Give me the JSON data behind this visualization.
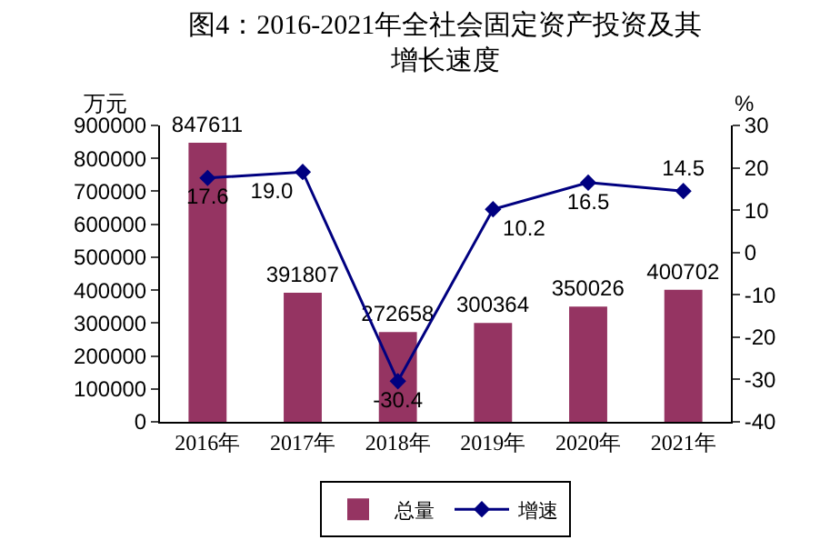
{
  "chart_data": {
    "type": "bar",
    "title": "图4：2016-2021年全社会固定资产投资及其增长速度",
    "ylabel": "万元",
    "y2label": "%",
    "categories": [
      "2016年",
      "2017年",
      "2018年",
      "2019年",
      "2020年",
      "2021年"
    ],
    "series": [
      {
        "name": "总量",
        "color": "#953462",
        "values": [
          847611,
          391807,
          272658,
          300364,
          350026,
          400702
        ]
      },
      {
        "name": "增速",
        "type": "line",
        "axis": "y2",
        "color": "#000080",
        "marker": "diamond",
        "values": [
          17.6,
          19.0,
          -30.4,
          10.2,
          16.5,
          14.5
        ],
        "value_labels": [
          "17.6",
          "19.0",
          "-30.4",
          "10.2",
          "16.5",
          "14.5"
        ]
      }
    ],
    "data_labels": true,
    "ylim": [
      0,
      900000
    ],
    "yticks": [
      0,
      100000,
      200000,
      300000,
      400000,
      500000,
      600000,
      700000,
      800000,
      900000
    ],
    "y2lim": [
      -40,
      30
    ],
    "y2ticks": [
      -40,
      -30,
      -20,
      -10,
      0,
      10,
      20,
      30
    ],
    "grid": false,
    "legend": "bottom"
  }
}
